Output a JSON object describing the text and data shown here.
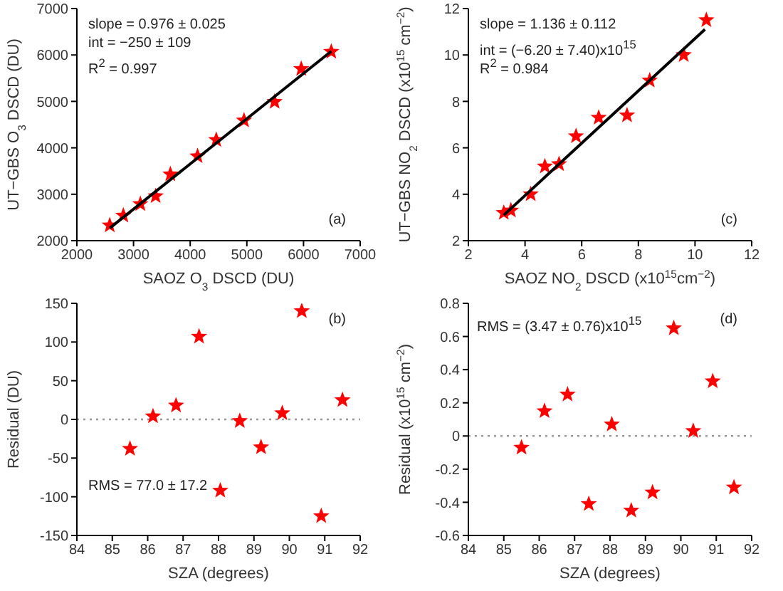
{
  "chart_data": [
    {
      "type": "scatter",
      "xlabel": "SAOZ O$_{3}$ DSCD (DU)",
      "ylabel": "UT−GBS O$_{3}$ DSCD (DU)",
      "xlim": [
        2000,
        7000
      ],
      "xticks": [
        2000,
        3000,
        4000,
        5000,
        6000,
        7000
      ],
      "ylim": [
        2000,
        7000
      ],
      "yticks": [
        2000,
        3000,
        4000,
        5000,
        6000,
        7000
      ],
      "marker": "star",
      "annotations": [
        "slope = 0.976 ± 0.025",
        "int = −250 ± 109",
        "R$^{2}$ = 0.997",
        "(a)"
      ],
      "series": [
        {
          "color": "#ff0000",
          "x": [
            2580,
            2820,
            3120,
            3390,
            3650,
            4130,
            4460,
            4950,
            5490,
            5960,
            6490
          ],
          "values": [
            2330,
            2540,
            2790,
            2960,
            3430,
            3820,
            4170,
            4590,
            4990,
            5700,
            6070
          ]
        },
        {
          "type": "line",
          "color": "#000000",
          "marker": "none",
          "line_style": "solid",
          "x": [
            2580,
            6490
          ],
          "values": [
            2270,
            6080
          ]
        }
      ]
    },
    {
      "type": "scatter",
      "xlabel": "SAOZ NO$_{2}$ DSCD (x10$^{15}$cm$^{−2}$)",
      "ylabel": "UT−GBS NO$_{2}$ DSCD (x10$^{15}$ cm$^{−2}$)",
      "xlim": [
        2,
        12
      ],
      "xticks": [
        2,
        4,
        6,
        8,
        10,
        12
      ],
      "ylim": [
        2,
        12
      ],
      "yticks": [
        2,
        4,
        6,
        8,
        10,
        12
      ],
      "marker": "star",
      "annotations": [
        "slope = 1.136 ± 0.112",
        "int = (−6.20 ± 7.40)x10$^{15}$",
        "R$^{2}$ = 0.984",
        "(c)"
      ],
      "series": [
        {
          "color": "#ff0000",
          "x": [
            3.25,
            3.5,
            4.2,
            4.7,
            5.2,
            5.8,
            6.6,
            7.6,
            8.4,
            9.6,
            10.4
          ],
          "values": [
            3.2,
            3.3,
            4.0,
            5.2,
            5.3,
            6.5,
            7.3,
            7.4,
            8.9,
            10.0,
            11.5
          ]
        },
        {
          "type": "line",
          "color": "#000000",
          "marker": "none",
          "line_style": "solid",
          "x": [
            3.25,
            10.35
          ],
          "values": [
            3.1,
            11.1
          ]
        }
      ]
    },
    {
      "type": "scatter",
      "xlabel": "SZA (degrees)",
      "ylabel": "Residual (DU)",
      "xlim": [
        84,
        92
      ],
      "xticks": [
        84,
        85,
        86,
        87,
        88,
        89,
        90,
        91,
        92
      ],
      "ylim": [
        -150,
        150
      ],
      "yticks": [
        -150,
        -100,
        -50,
        0,
        50,
        100,
        150
      ],
      "marker": "star",
      "annotations": [
        "RMS = 77.0 ± 17.2",
        "(b)"
      ],
      "ref_lines": [
        {
          "axis": "y",
          "value": 0,
          "color": "#999999",
          "line_style": "dotted"
        }
      ],
      "series": [
        {
          "color": "#ff0000",
          "x": [
            85.5,
            86.15,
            86.8,
            87.45,
            88.05,
            88.6,
            89.2,
            89.8,
            90.35,
            90.9,
            91.5
          ],
          "values": [
            -38,
            4,
            18,
            107,
            -92,
            -2,
            -36,
            8,
            140,
            -125,
            25
          ]
        }
      ]
    },
    {
      "type": "scatter",
      "xlabel": "SZA (degrees)",
      "ylabel": "Residual (x10$^{15}$ cm$^{−2}$)",
      "xlim": [
        84,
        92
      ],
      "xticks": [
        84,
        85,
        86,
        87,
        88,
        89,
        90,
        91,
        92
      ],
      "ylim": [
        -0.6,
        0.8
      ],
      "yticks": [
        -0.6,
        -0.4,
        -0.2,
        0,
        0.2,
        0.4,
        0.6,
        0.8
      ],
      "marker": "star",
      "annotations": [
        "RMS = (3.47 ± 0.76)x10$^{15}$",
        "(d)"
      ],
      "ref_lines": [
        {
          "axis": "y",
          "value": 0,
          "color": "#999999",
          "line_style": "dotted"
        }
      ],
      "series": [
        {
          "color": "#ff0000",
          "x": [
            85.5,
            86.15,
            86.8,
            87.4,
            88.05,
            88.6,
            89.2,
            89.8,
            90.35,
            90.9,
            91.5
          ],
          "values": [
            -0.07,
            0.15,
            0.25,
            -0.41,
            0.07,
            -0.45,
            -0.34,
            0.65,
            0.03,
            0.33,
            -0.31
          ]
        }
      ]
    }
  ]
}
